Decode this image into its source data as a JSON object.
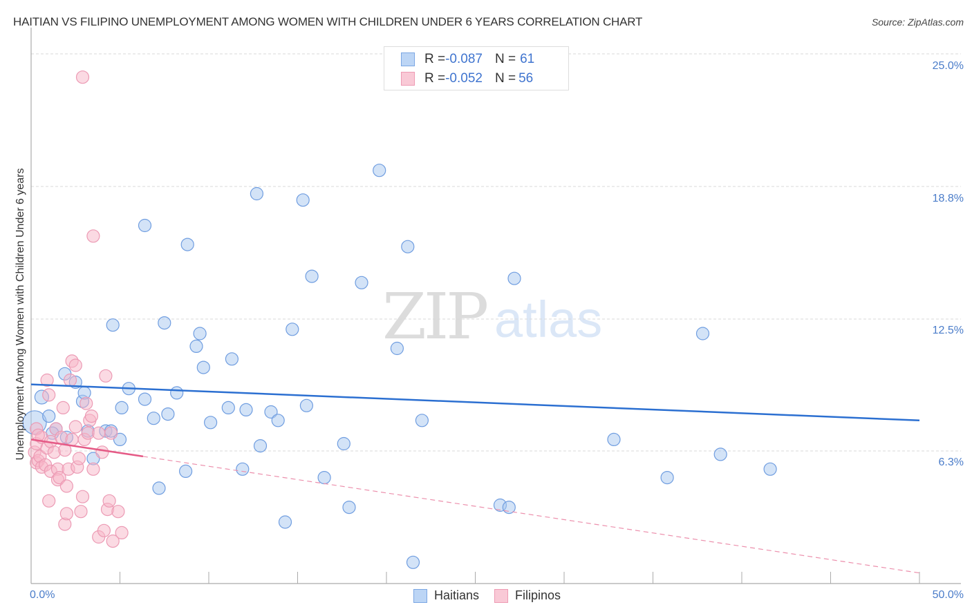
{
  "header": {
    "title": "HAITIAN VS FILIPINO UNEMPLOYMENT AMONG WOMEN WITH CHILDREN UNDER 6 YEARS CORRELATION CHART",
    "source": "Source: ZipAtlas.com"
  },
  "watermark": {
    "zip": "ZIP",
    "atlas": "atlas"
  },
  "legend": {
    "rows": [
      {
        "r_label": "R = ",
        "r_value": "-0.087",
        "n_label": "N = ",
        "n_value": " 61",
        "color": "#a8c8f0"
      },
      {
        "r_label": "R = ",
        "r_value": "-0.052",
        "n_label": "N = ",
        "n_value": "56",
        "color": "#f7b6c8"
      }
    ]
  },
  "bottom_legend": {
    "series1": "Haitians",
    "series2": "Filipinos"
  },
  "axes": {
    "y_label": "Unemployment Among Women with Children Under 6 years",
    "y_ticks": [
      "25.0%",
      "18.8%",
      "12.5%",
      "6.3%"
    ],
    "x_ticks": [
      "0.0%",
      "50.0%"
    ]
  },
  "chart_data": {
    "type": "scatter",
    "title": "HAITIAN VS FILIPINO UNEMPLOYMENT AMONG WOMEN WITH CHILDREN UNDER 6 YEARS CORRELATION CHART",
    "xlabel": "",
    "ylabel": "Unemployment Among Women with Children Under 6 years",
    "xlim": [
      0,
      50
    ],
    "ylim": [
      0,
      25
    ],
    "y_ticks": [
      6.3,
      12.5,
      18.8,
      25.0
    ],
    "x_ticks": [
      0.0,
      50.0
    ],
    "grid": true,
    "legend_position": "top-center",
    "series": [
      {
        "name": "Haitians",
        "color": "#a8c8f0",
        "stroke": "#5b8fd9",
        "R": -0.087,
        "N": 61,
        "trend": {
          "x": [
            0,
            50
          ],
          "y": [
            9.4,
            7.7
          ]
        },
        "points": [
          [
            0.2,
            7.6
          ],
          [
            0.6,
            8.8
          ],
          [
            1.0,
            7.9
          ],
          [
            1.4,
            7.3
          ],
          [
            1.9,
            9.9
          ],
          [
            2.5,
            9.5
          ],
          [
            2.9,
            8.6
          ],
          [
            3.2,
            7.2
          ],
          [
            3.5,
            5.9
          ],
          [
            4.2,
            7.2
          ],
          [
            4.5,
            7.2
          ],
          [
            4.6,
            12.2
          ],
          [
            5.0,
            6.8
          ],
          [
            5.1,
            8.3
          ],
          [
            5.5,
            9.2
          ],
          [
            6.4,
            8.7
          ],
          [
            6.4,
            16.9
          ],
          [
            6.9,
            7.8
          ],
          [
            7.2,
            4.5
          ],
          [
            7.5,
            12.3
          ],
          [
            7.7,
            8.0
          ],
          [
            8.2,
            9.0
          ],
          [
            8.7,
            5.3
          ],
          [
            8.8,
            16.0
          ],
          [
            9.3,
            11.2
          ],
          [
            9.5,
            11.8
          ],
          [
            9.7,
            10.2
          ],
          [
            10.1,
            7.6
          ],
          [
            11.1,
            8.3
          ],
          [
            11.3,
            10.6
          ],
          [
            11.9,
            5.4
          ],
          [
            12.1,
            8.2
          ],
          [
            12.7,
            18.4
          ],
          [
            12.9,
            6.5
          ],
          [
            13.5,
            8.1
          ],
          [
            13.9,
            7.7
          ],
          [
            14.3,
            2.9
          ],
          [
            14.7,
            12.0
          ],
          [
            15.3,
            18.1
          ],
          [
            15.5,
            8.4
          ],
          [
            15.8,
            14.5
          ],
          [
            16.5,
            5.0
          ],
          [
            17.6,
            6.6
          ],
          [
            17.9,
            3.6
          ],
          [
            18.6,
            14.2
          ],
          [
            19.6,
            19.5
          ],
          [
            20.6,
            11.1
          ],
          [
            21.2,
            15.9
          ],
          [
            21.5,
            1.0
          ],
          [
            22.0,
            7.7
          ],
          [
            26.4,
            3.7
          ],
          [
            26.9,
            3.6
          ],
          [
            27.2,
            14.4
          ],
          [
            32.8,
            6.8
          ],
          [
            35.8,
            5.0
          ],
          [
            37.8,
            11.8
          ],
          [
            38.8,
            6.1
          ],
          [
            41.6,
            5.4
          ],
          [
            3.0,
            9.0
          ],
          [
            2.0,
            6.9
          ],
          [
            1.2,
            7.1
          ]
        ]
      },
      {
        "name": "Filipinos",
        "color": "#f7b6c8",
        "stroke": "#e87fa0",
        "R": -0.052,
        "N": 56,
        "trend": {
          "x": [
            0,
            6.3
          ],
          "y": [
            6.8,
            6.0
          ],
          "extended_dashed_to": [
            50,
            0.5
          ]
        },
        "points": [
          [
            0.2,
            6.2
          ],
          [
            0.3,
            5.7
          ],
          [
            0.3,
            6.6
          ],
          [
            0.3,
            7.3
          ],
          [
            0.4,
            5.8
          ],
          [
            0.5,
            6.0
          ],
          [
            0.6,
            6.9
          ],
          [
            0.6,
            5.5
          ],
          [
            0.8,
            5.6
          ],
          [
            0.9,
            6.4
          ],
          [
            0.9,
            9.6
          ],
          [
            1.0,
            8.9
          ],
          [
            1.0,
            3.9
          ],
          [
            1.1,
            5.3
          ],
          [
            1.1,
            6.7
          ],
          [
            1.3,
            6.2
          ],
          [
            1.4,
            7.3
          ],
          [
            1.5,
            5.4
          ],
          [
            1.5,
            4.9
          ],
          [
            1.6,
            5.0
          ],
          [
            1.7,
            6.9
          ],
          [
            1.8,
            8.3
          ],
          [
            1.9,
            2.8
          ],
          [
            1.9,
            6.3
          ],
          [
            2.0,
            3.3
          ],
          [
            2.0,
            4.6
          ],
          [
            2.1,
            5.4
          ],
          [
            2.2,
            9.6
          ],
          [
            2.3,
            10.5
          ],
          [
            2.3,
            6.8
          ],
          [
            2.5,
            10.3
          ],
          [
            2.5,
            7.4
          ],
          [
            2.6,
            5.5
          ],
          [
            2.7,
            5.9
          ],
          [
            2.8,
            3.4
          ],
          [
            2.9,
            4.1
          ],
          [
            3.0,
            6.8
          ],
          [
            3.1,
            8.5
          ],
          [
            3.2,
            7.1
          ],
          [
            3.3,
            7.7
          ],
          [
            3.4,
            7.9
          ],
          [
            3.5,
            5.4
          ],
          [
            3.5,
            16.4
          ],
          [
            3.8,
            7.1
          ],
          [
            3.8,
            2.2
          ],
          [
            4.0,
            6.2
          ],
          [
            4.1,
            2.5
          ],
          [
            4.2,
            9.8
          ],
          [
            4.3,
            3.5
          ],
          [
            4.4,
            3.9
          ],
          [
            4.5,
            7.1
          ],
          [
            4.6,
            2.0
          ],
          [
            4.9,
            3.4
          ],
          [
            5.1,
            2.4
          ],
          [
            2.9,
            23.9
          ],
          [
            0.4,
            7.0
          ]
        ]
      }
    ]
  }
}
